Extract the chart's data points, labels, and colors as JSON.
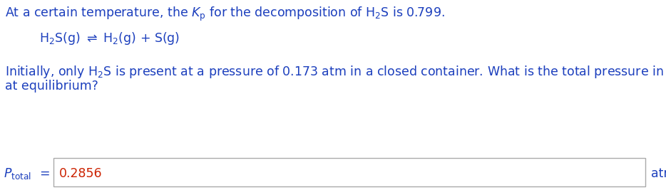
{
  "background_color": "#ffffff",
  "text_color": "#1c3fbd",
  "answer_color": "#cc2200",
  "font_size": 12.5,
  "fig_width": 9.34,
  "fig_height": 2.74,
  "dpi": 100
}
